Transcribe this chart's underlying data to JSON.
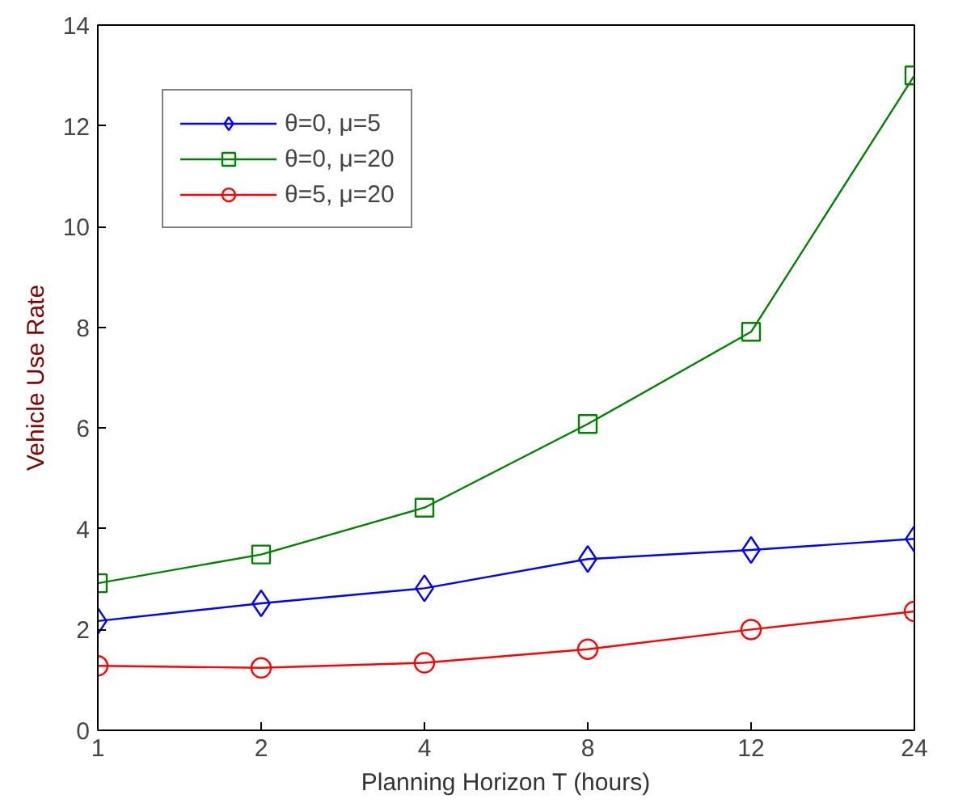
{
  "chart_data": {
    "type": "line",
    "xlabel": "Planning Horizon T (hours)",
    "ylabel": "Vehicle Use Rate",
    "categories": [
      "1",
      "2",
      "4",
      "8",
      "12",
      "24"
    ],
    "ylim": [
      0,
      14
    ],
    "yticks": [
      0,
      2,
      4,
      6,
      8,
      10,
      12,
      14
    ],
    "grid": false,
    "legend": "top left",
    "line_style": "solid",
    "series": [
      {
        "name": "θ=0, μ=5",
        "color": "#0000ff",
        "marker": "diamond",
        "values": [
          2.17,
          2.52,
          2.82,
          3.4,
          3.58,
          3.8
        ]
      },
      {
        "name": "θ=0, μ=20",
        "color": "#008000",
        "marker": "square",
        "values": [
          2.92,
          3.49,
          4.42,
          6.08,
          7.91,
          13.0
        ]
      },
      {
        "name": "θ=5, μ=20",
        "color": "#ff0000",
        "marker": "circle",
        "values": [
          1.28,
          1.24,
          1.34,
          1.61,
          2.0,
          2.36
        ]
      }
    ]
  }
}
